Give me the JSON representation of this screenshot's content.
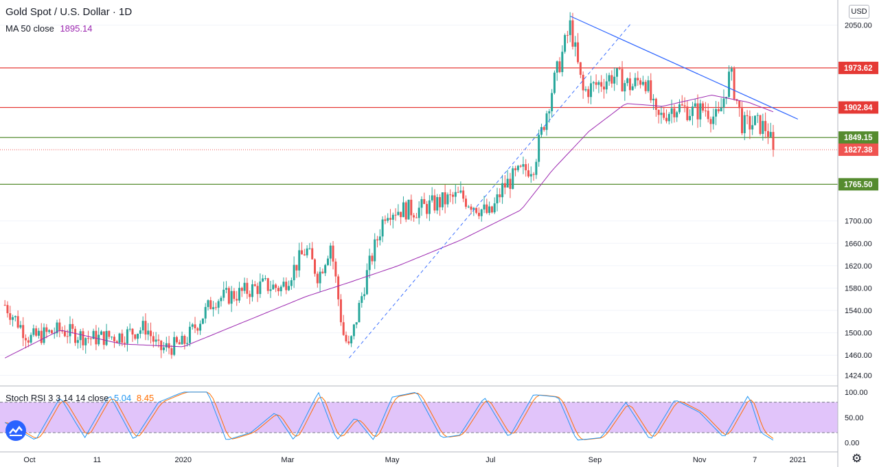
{
  "header": {
    "symbol": "Gold Spot / U.S. Dollar · 1D",
    "ma_label": "MA 50 close",
    "ma_value": "1895.14",
    "currency_button": "USD"
  },
  "stoch_legend": {
    "label": "Stoch RSI 3 3 14 14 close",
    "k_value": "5.04",
    "d_value": "8.45"
  },
  "colors": {
    "up": "#26a69a",
    "down": "#ef5350",
    "ma": "#9c27b0",
    "resistance": "#e53935",
    "support": "#558b2f",
    "trend": "#2962ff",
    "stoch_k": "#2196f3",
    "stoch_d": "#ff6d00",
    "stoch_band": "#e1c4fa"
  },
  "icons": [
    "tradingview-logo-icon",
    "settings-gear-icon"
  ],
  "chart_data": [
    {
      "type": "candlestick",
      "title": "Gold Spot / U.S. Dollar · 1D",
      "y_ticks": [
        1424,
        1460,
        1500,
        1540,
        1580,
        1620,
        1660,
        1700,
        2050
      ],
      "y_tick_labels": [
        "1424.00",
        "1460.00",
        "1500.00",
        "1540.00",
        "1580.00",
        "1620.00",
        "1660.00",
        "1700.00",
        "2050.00"
      ],
      "y_range": [
        1405,
        2095
      ],
      "x_tick_labels": [
        "Oct",
        "11",
        "2020",
        "Mar",
        "May",
        "Jul",
        "Sep",
        "Nov",
        "7",
        "2021"
      ],
      "price_lines": [
        {
          "value": 1973.62,
          "label": "1973.62",
          "kind": "resistance"
        },
        {
          "value": 1902.84,
          "label": "1902.84",
          "kind": "resistance"
        },
        {
          "value": 1849.15,
          "label": "1849.15",
          "kind": "support"
        },
        {
          "value": 1765.5,
          "label": "1765.50",
          "kind": "support"
        }
      ],
      "last_price": {
        "value": 1827.38,
        "label": "1827.38"
      },
      "close_anchors": [
        [
          2019.71,
          1550
        ],
        [
          2019.75,
          1490
        ],
        [
          2019.8,
          1505
        ],
        [
          2019.85,
          1490
        ],
        [
          2019.9,
          1495
        ],
        [
          2019.94,
          1510
        ],
        [
          2019.96,
          1470
        ],
        [
          2020.0,
          1480
        ],
        [
          2020.05,
          1560
        ],
        [
          2020.09,
          1570
        ],
        [
          2020.13,
          1585
        ],
        [
          2020.16,
          1580
        ],
        [
          2020.2,
          1650
        ],
        [
          2020.22,
          1600
        ],
        [
          2020.24,
          1660
        ],
        [
          2020.26,
          1500
        ],
        [
          2020.27,
          1470
        ],
        [
          2020.3,
          1610
        ],
        [
          2020.33,
          1720
        ],
        [
          2020.38,
          1720
        ],
        [
          2020.45,
          1745
        ],
        [
          2020.5,
          1710
        ],
        [
          2020.52,
          1760
        ],
        [
          2020.54,
          1780
        ],
        [
          2020.57,
          1800
        ],
        [
          2020.6,
          1935
        ],
        [
          2020.63,
          2050
        ],
        [
          2020.65,
          1930
        ],
        [
          2020.7,
          1960
        ],
        [
          2020.73,
          1940
        ],
        [
          2020.75,
          1960
        ],
        [
          2020.77,
          1880
        ],
        [
          2020.8,
          1905
        ],
        [
          2020.83,
          1895
        ],
        [
          2020.85,
          1900
        ],
        [
          2020.87,
          1880
        ],
        [
          2020.89,
          1965
        ],
        [
          2020.91,
          1870
        ],
        [
          2020.93,
          1875
        ],
        [
          2020.95,
          1865
        ],
        [
          2020.96,
          1827.38
        ]
      ],
      "ma50_anchors": [
        [
          2019.71,
          1455
        ],
        [
          2019.8,
          1505
        ],
        [
          2019.9,
          1480
        ],
        [
          2020.0,
          1475
        ],
        [
          2020.1,
          1520
        ],
        [
          2020.2,
          1565
        ],
        [
          2020.27,
          1590
        ],
        [
          2020.35,
          1620
        ],
        [
          2020.45,
          1665
        ],
        [
          2020.55,
          1720
        ],
        [
          2020.6,
          1790
        ],
        [
          2020.66,
          1860
        ],
        [
          2020.72,
          1910
        ],
        [
          2020.78,
          1905
        ],
        [
          2020.86,
          1925
        ],
        [
          2020.92,
          1912
        ],
        [
          2020.96,
          1895.14
        ]
      ],
      "trendlines": [
        {
          "style": "solid",
          "from": [
            2020.63,
            2066
          ],
          "to": [
            2021.0,
            1882
          ]
        },
        {
          "style": "dashed",
          "from": [
            2020.27,
            1455
          ],
          "to": [
            2020.73,
            2055
          ]
        }
      ]
    },
    {
      "type": "line",
      "title": "Stoch RSI 3 3 14 14 close",
      "y_ticks": [
        0,
        50,
        100
      ],
      "y_tick_labels": [
        "0.00",
        "50.00",
        "100.00"
      ],
      "band": [
        20,
        80
      ],
      "series": [
        {
          "name": "K",
          "last": 5.04
        },
        {
          "name": "D",
          "last": 8.45
        }
      ],
      "k_anchors": [
        [
          2019.71,
          40
        ],
        [
          2019.76,
          5
        ],
        [
          2019.8,
          90
        ],
        [
          2019.84,
          10
        ],
        [
          2019.88,
          95
        ],
        [
          2019.92,
          5
        ],
        [
          2019.96,
          80
        ],
        [
          2020.0,
          100
        ],
        [
          2020.04,
          100
        ],
        [
          2020.07,
          5
        ],
        [
          2020.11,
          20
        ],
        [
          2020.15,
          60
        ],
        [
          2020.18,
          5
        ],
        [
          2020.22,
          100
        ],
        [
          2020.25,
          5
        ],
        [
          2020.28,
          50
        ],
        [
          2020.31,
          5
        ],
        [
          2020.34,
          90
        ],
        [
          2020.38,
          100
        ],
        [
          2020.42,
          10
        ],
        [
          2020.45,
          15
        ],
        [
          2020.49,
          90
        ],
        [
          2020.53,
          10
        ],
        [
          2020.57,
          95
        ],
        [
          2020.61,
          90
        ],
        [
          2020.64,
          5
        ],
        [
          2020.68,
          10
        ],
        [
          2020.72,
          80
        ],
        [
          2020.76,
          5
        ],
        [
          2020.8,
          85
        ],
        [
          2020.84,
          60
        ],
        [
          2020.88,
          10
        ],
        [
          2020.92,
          95
        ],
        [
          2020.94,
          20
        ],
        [
          2020.96,
          5.04
        ]
      ]
    }
  ]
}
